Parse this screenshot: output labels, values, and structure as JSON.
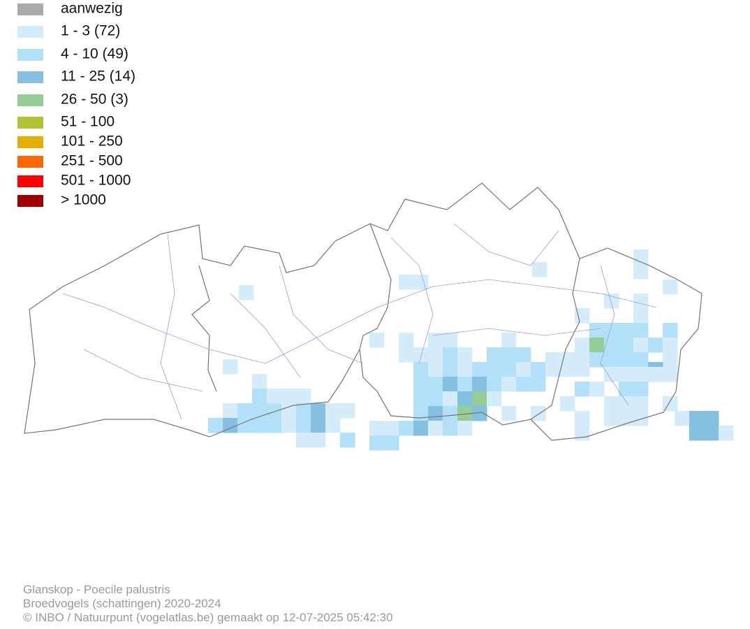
{
  "legend": {
    "items": [
      {
        "label": "aanwezig",
        "color": "#aaaaaa"
      },
      {
        "label": "1 - 3 (72)",
        "color": "#d4ebf9"
      },
      {
        "label": "4 - 10 (49)",
        "color": "#b3e0f9"
      },
      {
        "label": "11 - 25 (14)",
        "color": "#85c0e0"
      },
      {
        "label": "26 - 50 (3)",
        "color": "#96cc96"
      },
      {
        "label": "51 - 100",
        "color": "#b2c232"
      },
      {
        "label": "101 - 250",
        "color": "#e4ae00"
      },
      {
        "label": "251 - 500",
        "color": "#ff6600"
      },
      {
        "label": "501 - 1000",
        "color": "#ff0000"
      },
      {
        "label": "> 1000",
        "color": "#a00000"
      }
    ]
  },
  "footer": {
    "lines": [
      "Glanskop - Poecile palustris",
      "Broedvogels (schattingen) 2020-2024",
      "© INBO / Natuurpunt (vogelatlas.be) gemaakt op 12-07-2025 05:42:30"
    ]
  }
}
